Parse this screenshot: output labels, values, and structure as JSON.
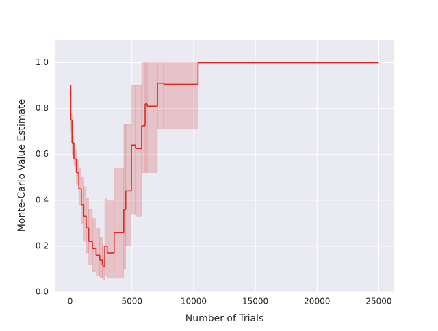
{
  "chart_data": {
    "type": "line",
    "xlabel": "Number of Trials",
    "ylabel": "Monte-Carlo Value Estimate",
    "color": "#d62a22",
    "band_color": "#d62a22",
    "step": true,
    "grid": true,
    "x": [
      0,
      50,
      150,
      300,
      500,
      700,
      900,
      1100,
      1300,
      1500,
      1800,
      2100,
      2400,
      2600,
      2670,
      2800,
      3000,
      3560,
      4340,
      4500,
      4960,
      5290,
      5790,
      6070,
      6240,
      7070,
      7570,
      10360,
      25000
    ],
    "values": [
      0.9,
      0.75,
      0.65,
      0.58,
      0.52,
      0.45,
      0.38,
      0.33,
      0.28,
      0.22,
      0.19,
      0.16,
      0.14,
      0.12,
      0.11,
      0.2,
      0.17,
      0.26,
      0.36,
      0.44,
      0.64,
      0.625,
      0.725,
      0.82,
      0.81,
      0.91,
      0.905,
      1.0,
      1.0
    ],
    "upper": [
      0.9,
      0.78,
      0.68,
      0.62,
      0.58,
      0.54,
      0.5,
      0.46,
      0.41,
      0.36,
      0.32,
      0.28,
      0.24,
      0.21,
      0.2,
      0.41,
      0.4,
      0.54,
      0.73,
      0.73,
      0.9,
      0.9,
      1.0,
      1.0,
      1.0,
      1.0,
      1.0,
      1.0,
      1.0
    ],
    "lower": [
      0.9,
      0.7,
      0.6,
      0.55,
      0.47,
      0.38,
      0.3,
      0.22,
      0.17,
      0.12,
      0.09,
      0.07,
      0.06,
      0.06,
      0.05,
      0.07,
      0.06,
      0.06,
      0.1,
      0.2,
      0.34,
      0.33,
      0.52,
      0.52,
      0.52,
      0.71,
      0.71,
      1.0,
      1.0
    ],
    "xlim": [
      -1250,
      26250
    ],
    "ylim": [
      0,
      1.1
    ],
    "xticks": [
      0,
      5000,
      10000,
      15000,
      20000,
      25000
    ],
    "yticks": [
      {
        "value": 0,
        "label": "0.0"
      },
      {
        "value": 0.2,
        "label": "0.2"
      },
      {
        "value": 0.4,
        "label": "0.4"
      },
      {
        "value": 0.6,
        "label": "0.6"
      },
      {
        "value": 0.8,
        "label": "0.8"
      },
      {
        "value": 1.0,
        "label": "1.0"
      }
    ]
  }
}
